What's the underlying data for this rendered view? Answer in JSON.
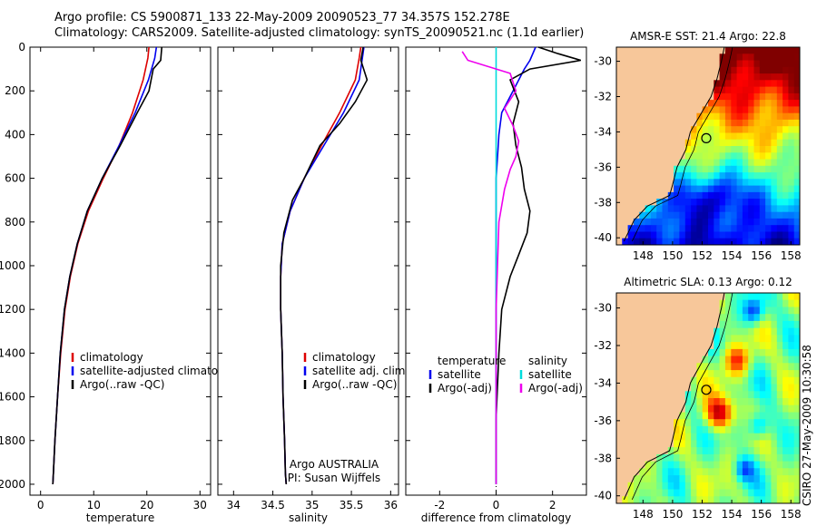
{
  "header": {
    "line1": "Argo profile: CS 5900871_133 22-May-2009 20090523_77 34.357S 152.278E",
    "line2": "Climatology: CARS2009. Satellite-adjusted climatology: synTS_20090521.nc (1.1d earlier)"
  },
  "side_label": "CSIRO 27-May-2009 10:30:58",
  "colors": {
    "climatology": "#dd0000",
    "satellite": "#0000ee",
    "argo": "#000000",
    "salinity_sat": "#00dddd",
    "salinity_argo": "#ee00ee",
    "land": "#f7c79a"
  },
  "chart_data": [
    {
      "type": "line",
      "id": "temperature",
      "xlabel": "temperature",
      "ylabel": "",
      "xlim": [
        -2,
        32
      ],
      "ylim": [
        2050,
        0
      ],
      "xticks": [
        0,
        10,
        20,
        30
      ],
      "yticks": [
        0,
        200,
        400,
        600,
        800,
        1000,
        1200,
        1400,
        1600,
        1800,
        2000
      ],
      "legend": [
        "climatology",
        "satellite-adjusted climatology",
        "Argo(..raw -QC)"
      ],
      "series": [
        {
          "name": "climatology",
          "color": "#dd0000",
          "x": [
            20.4,
            20.2,
            19.3,
            17.3,
            14.8,
            11.8,
            9.0,
            7.0,
            5.6,
            4.6,
            3.8,
            3.2,
            2.7,
            2.4,
            2.3
          ],
          "y": [
            0,
            50,
            150,
            300,
            450,
            600,
            750,
            900,
            1050,
            1200,
            1400,
            1600,
            1800,
            1950,
            2000
          ]
        },
        {
          "name": "satellite-adjusted climatology",
          "color": "#0000ee",
          "x": [
            21.8,
            21.5,
            20.3,
            17.8,
            14.8,
            11.6,
            8.8,
            6.9,
            5.5,
            4.5,
            3.7,
            3.2,
            2.7,
            2.4,
            2.3
          ],
          "y": [
            0,
            50,
            150,
            300,
            450,
            600,
            750,
            900,
            1050,
            1200,
            1400,
            1600,
            1800,
            1950,
            2000
          ]
        },
        {
          "name": "Argo(..raw -QC)",
          "color": "#000000",
          "x": [
            22.8,
            22.6,
            21.2,
            20.4,
            18.2,
            15.0,
            11.6,
            8.8,
            6.9,
            5.5,
            4.5,
            3.7,
            3.2,
            2.7,
            2.4,
            2.3
          ],
          "y": [
            0,
            60,
            100,
            200,
            300,
            450,
            600,
            750,
            900,
            1050,
            1200,
            1400,
            1600,
            1800,
            1950,
            2000
          ]
        }
      ]
    },
    {
      "type": "line",
      "id": "salinity",
      "xlabel": "salinity",
      "ylabel": "",
      "xlim": [
        33.8,
        36.1
      ],
      "ylim": [
        2050,
        0
      ],
      "xticks": [
        34,
        34.5,
        35,
        35.5,
        36
      ],
      "legend": [
        "climatology",
        "satellite adj. clim.",
        "Argo(..raw -QC)"
      ],
      "annotation": [
        "Argo AUSTRALIA",
        "PI: Susan Wijffels"
      ],
      "series": [
        {
          "name": "climatology",
          "color": "#dd0000",
          "x": [
            35.62,
            35.6,
            35.55,
            35.35,
            35.12,
            34.9,
            34.72,
            34.62,
            34.6,
            34.6,
            34.62,
            34.63,
            34.65,
            34.66,
            34.67
          ],
          "y": [
            0,
            50,
            150,
            300,
            450,
            600,
            750,
            900,
            1050,
            1200,
            1400,
            1600,
            1800,
            1950,
            2000
          ]
        },
        {
          "name": "satellite adj. clim.",
          "color": "#0000ee",
          "x": [
            35.66,
            35.64,
            35.6,
            35.4,
            35.15,
            34.9,
            34.72,
            34.62,
            34.6,
            34.6,
            34.62,
            34.63,
            34.65,
            34.66,
            34.67
          ],
          "y": [
            0,
            50,
            150,
            300,
            450,
            600,
            750,
            900,
            1050,
            1200,
            1400,
            1600,
            1800,
            1950,
            2000
          ]
        },
        {
          "name": "Argo(..raw -QC)",
          "color": "#000000",
          "x": [
            35.65,
            35.62,
            35.7,
            35.55,
            35.35,
            35.1,
            34.9,
            34.75,
            34.64,
            34.6,
            34.6,
            34.62,
            34.63,
            34.65,
            34.66,
            34.67
          ],
          "y": [
            0,
            60,
            150,
            250,
            350,
            450,
            600,
            700,
            850,
            1000,
            1200,
            1400,
            1600,
            1800,
            1950,
            2000
          ]
        }
      ]
    },
    {
      "type": "line",
      "id": "difference",
      "xlabel": "difference from climatology",
      "ylabel": "",
      "xlim": [
        -3.2,
        3.2
      ],
      "ylim": [
        2050,
        0
      ],
      "xticks": [
        -2,
        0,
        2
      ],
      "legend_left_title": "temperature",
      "legend_right_title": "salinity",
      "legend": [
        "satellite",
        "Argo(-adj)",
        "satellite",
        "Argo(-adj)"
      ],
      "series": [
        {
          "name": "satellite",
          "color": "#0000ee",
          "x": [
            1.4,
            1.2,
            1.0,
            0.6,
            0.2,
            0.1,
            0.05,
            0.0,
            0.0,
            0.0,
            0.0,
            0.0,
            0.0,
            0.0
          ],
          "y": [
            0,
            60,
            100,
            200,
            300,
            400,
            500,
            600,
            700,
            900,
            1200,
            1500,
            1800,
            2000
          ]
        },
        {
          "name": "Argo(-adj)",
          "color": "#000000",
          "x": [
            1.5,
            2.2,
            3.0,
            1.2,
            0.5,
            0.8,
            0.6,
            0.7,
            0.9,
            1.0,
            1.2,
            1.1,
            0.8,
            0.5,
            0.2,
            0.1,
            0.0,
            0.0
          ],
          "y": [
            0,
            30,
            60,
            100,
            150,
            250,
            350,
            450,
            550,
            650,
            750,
            850,
            950,
            1050,
            1200,
            1400,
            1700,
            2000
          ]
        },
        {
          "name": "satellite",
          "color": "#00dddd",
          "x": [
            0.0,
            0.0,
            0.0,
            0.0,
            0.0,
            0.0,
            0.0,
            0.0,
            0.0
          ],
          "y": [
            0,
            200,
            400,
            600,
            800,
            1000,
            1200,
            1600,
            2000
          ]
        },
        {
          "name": "Argo(-adj)",
          "color": "#ee00ee",
          "x": [
            -1.2,
            -1.0,
            0.5,
            0.7,
            0.3,
            0.6,
            0.8,
            0.7,
            0.5,
            0.3,
            0.1,
            0.0,
            0.0
          ],
          "y": [
            20,
            60,
            120,
            200,
            280,
            360,
            430,
            500,
            560,
            650,
            800,
            1200,
            2000
          ]
        }
      ]
    },
    {
      "type": "heatmap",
      "id": "sst-map",
      "title": "AMSR-E SST: 21.4 Argo: 22.8",
      "xticks": [
        148,
        150,
        152,
        154,
        156,
        158
      ],
      "yticks": [
        -30,
        -32,
        -34,
        -36,
        -38,
        -40
      ],
      "xlim": [
        146.2,
        158.6
      ],
      "ylim": [
        -40.4,
        -29.2
      ],
      "float_position": {
        "lon": 152.278,
        "lat": -34.357
      }
    },
    {
      "type": "heatmap",
      "id": "sla-map",
      "title": "Altimetric SLA: 0.13 Argo: 0.12",
      "xticks": [
        148,
        150,
        152,
        154,
        156,
        158
      ],
      "yticks": [
        -30,
        -32,
        -34,
        -36,
        -38,
        -40
      ],
      "xlim": [
        146.2,
        158.6
      ],
      "ylim": [
        -40.4,
        -29.2
      ],
      "float_position": {
        "lon": 152.278,
        "lat": -34.357
      }
    }
  ]
}
